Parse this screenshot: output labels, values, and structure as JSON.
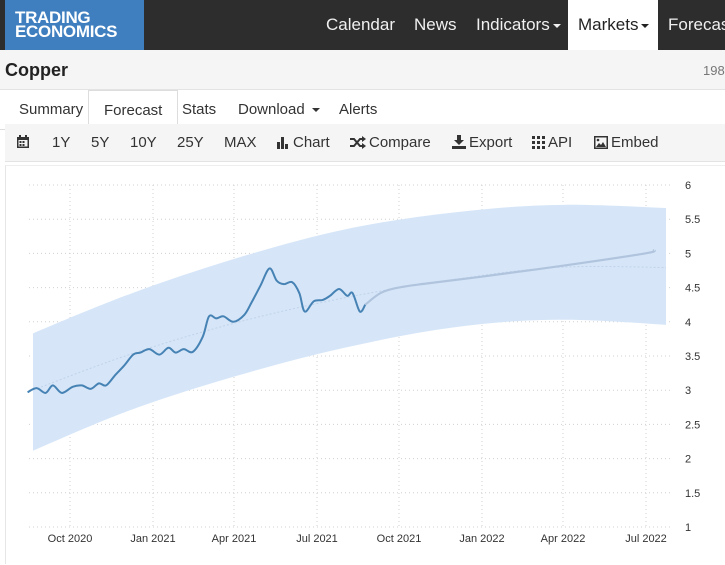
{
  "brand": {
    "line1": "TRADING",
    "line2": "ECONOMICS",
    "color": "#3f7fbf"
  },
  "nav": {
    "items": [
      {
        "label": "Calendar"
      },
      {
        "label": "News"
      },
      {
        "label": "Indicators"
      },
      {
        "label": "Markets"
      },
      {
        "label": "Forecas"
      }
    ],
    "active": "Markets"
  },
  "page": {
    "title": "Copper",
    "price_partial": "198"
  },
  "tabs": [
    {
      "label": "Summary"
    },
    {
      "label": "Forecast"
    },
    {
      "label": "Stats"
    },
    {
      "label": "Download"
    },
    {
      "label": "Alerts"
    }
  ],
  "toolbar": {
    "ranges": [
      "1Y",
      "5Y",
      "10Y",
      "25Y",
      "MAX"
    ],
    "chart": "Chart",
    "compare": "Compare",
    "export": "Export",
    "api": "API",
    "embed": "Embed"
  },
  "chart_data": {
    "type": "line",
    "ylim": [
      1,
      6
    ],
    "yticks": [
      "6",
      "5.5",
      "5",
      "4.5",
      "4",
      "3.5",
      "3",
      "2.5",
      "2",
      "1.5",
      "1"
    ],
    "xticks": [
      "Oct 2020",
      "Jan 2021",
      "Apr 2021",
      "Jul 2021",
      "Oct 2021",
      "Jan 2022",
      "Apr 2022",
      "Jul 2022"
    ],
    "grid": true,
    "colors": {
      "actual": "#4682b4",
      "forecast": "#b0c4de",
      "band": "#d6e6f8",
      "trend": "#c0d2ea"
    },
    "series": [
      {
        "role": "actual",
        "points": [
          [
            "2020-08-15",
            2.97
          ],
          [
            "2020-08-25",
            3.03
          ],
          [
            "2020-09-04",
            2.96
          ],
          [
            "2020-09-12",
            3.07
          ],
          [
            "2020-09-22",
            2.96
          ],
          [
            "2020-10-04",
            3.05
          ],
          [
            "2020-10-14",
            3.07
          ],
          [
            "2020-10-24",
            3.02
          ],
          [
            "2020-11-02",
            3.1
          ],
          [
            "2020-11-10",
            3.07
          ],
          [
            "2020-11-20",
            3.22
          ],
          [
            "2020-11-30",
            3.36
          ],
          [
            "2020-12-10",
            3.52
          ],
          [
            "2020-12-18",
            3.55
          ],
          [
            "2020-12-28",
            3.6
          ],
          [
            "2021-01-08",
            3.52
          ],
          [
            "2021-01-18",
            3.62
          ],
          [
            "2021-01-26",
            3.55
          ],
          [
            "2021-02-04",
            3.6
          ],
          [
            "2021-02-14",
            3.56
          ],
          [
            "2021-02-25",
            3.78
          ],
          [
            "2021-03-04",
            4.08
          ],
          [
            "2021-03-12",
            4.05
          ],
          [
            "2021-03-20",
            4.08
          ],
          [
            "2021-03-31",
            4.0
          ],
          [
            "2021-04-12",
            4.1
          ],
          [
            "2021-04-20",
            4.28
          ],
          [
            "2021-04-30",
            4.53
          ],
          [
            "2021-05-10",
            4.78
          ],
          [
            "2021-05-18",
            4.6
          ],
          [
            "2021-05-26",
            4.55
          ],
          [
            "2021-06-04",
            4.58
          ],
          [
            "2021-06-12",
            4.42
          ],
          [
            "2021-06-18",
            4.15
          ],
          [
            "2021-06-28",
            4.3
          ],
          [
            "2021-07-08",
            4.32
          ],
          [
            "2021-07-16",
            4.38
          ],
          [
            "2021-07-26",
            4.48
          ],
          [
            "2021-08-04",
            4.38
          ],
          [
            "2021-08-10",
            4.42
          ],
          [
            "2021-08-18",
            4.15
          ],
          [
            "2021-08-24",
            4.25
          ]
        ]
      },
      {
        "role": "forecast",
        "points": [
          [
            "2021-08-24",
            4.25
          ],
          [
            "2021-09-10",
            4.42
          ],
          [
            "2021-09-30",
            4.5
          ],
          [
            "2021-10-31",
            4.56
          ],
          [
            "2021-12-31",
            4.66
          ],
          [
            "2022-03-31",
            4.82
          ],
          [
            "2022-06-30",
            5.0
          ],
          [
            "2022-07-10",
            5.05
          ]
        ]
      },
      {
        "role": "trend",
        "points": [
          [
            "2020-08-01",
            2.9
          ],
          [
            "2020-12-01",
            3.5
          ],
          [
            "2021-04-01",
            3.98
          ],
          [
            "2021-08-01",
            4.35
          ],
          [
            "2021-12-01",
            4.62
          ],
          [
            "2022-04-01",
            4.8
          ],
          [
            "2022-08-30",
            4.78
          ]
        ]
      },
      {
        "role": "band-upper",
        "points": [
          [
            "2020-08-01",
            3.72
          ],
          [
            "2020-12-01",
            4.38
          ],
          [
            "2021-04-01",
            4.92
          ],
          [
            "2021-08-01",
            5.35
          ],
          [
            "2021-12-01",
            5.6
          ],
          [
            "2022-04-01",
            5.71
          ],
          [
            "2022-08-30",
            5.64
          ]
        ]
      },
      {
        "role": "band-lower",
        "points": [
          [
            "2020-08-01",
            2.0
          ],
          [
            "2020-12-01",
            2.68
          ],
          [
            "2021-04-01",
            3.2
          ],
          [
            "2021-08-01",
            3.62
          ],
          [
            "2021-12-01",
            3.92
          ],
          [
            "2022-04-01",
            4.03
          ],
          [
            "2022-08-30",
            3.92
          ]
        ]
      }
    ]
  }
}
